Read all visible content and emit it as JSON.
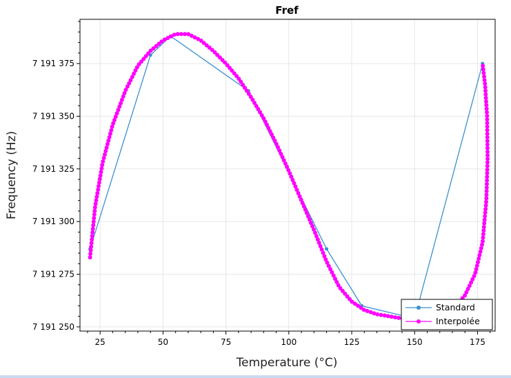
{
  "chart_data": {
    "type": "line",
    "title": "Fref",
    "xlabel": "Temperature (°C)",
    "ylabel": "Frequency (Hz)",
    "xlim": [
      17,
      182
    ],
    "ylim": [
      7191248,
      7191396
    ],
    "x_ticks": [
      25,
      50,
      75,
      100,
      125,
      150,
      175
    ],
    "x_tick_labels": [
      "25",
      "50",
      "75",
      "100",
      "125",
      "150",
      "175"
    ],
    "y_ticks": [
      7191250,
      7191275,
      7191300,
      7191325,
      7191350,
      7191375
    ],
    "y_tick_labels": [
      "7 191 250",
      "7 191 275",
      "7 191 300",
      "7 191 325",
      "7 191 350",
      "7 191 375"
    ],
    "grid": true,
    "legend_position": "bottom-right",
    "series": [
      {
        "name": "Standard",
        "color": "#3a8fd0",
        "points": [
          [
            21,
            7191287
          ],
          [
            45,
            7191379
          ],
          [
            53,
            7191388
          ],
          [
            84,
            7191362
          ],
          [
            115,
            7191287
          ],
          [
            129,
            7191260
          ],
          [
            150,
            7191254
          ],
          [
            177,
            7191375
          ]
        ]
      },
      {
        "name": "Interpolée",
        "color": "#ff00ff",
        "points": [
          [
            21,
            7191283
          ],
          [
            23,
            7191307
          ],
          [
            26,
            7191328
          ],
          [
            30,
            7191346
          ],
          [
            35,
            7191362
          ],
          [
            40,
            7191374
          ],
          [
            45,
            7191381
          ],
          [
            50,
            7191386
          ],
          [
            55,
            7191389
          ],
          [
            60,
            7191389
          ],
          [
            65,
            7191386
          ],
          [
            70,
            7191381
          ],
          [
            75,
            7191375
          ],
          [
            80,
            7191368
          ],
          [
            85,
            7191359
          ],
          [
            90,
            7191349
          ],
          [
            95,
            7191337
          ],
          [
            100,
            7191324
          ],
          [
            105,
            7191310
          ],
          [
            110,
            7191296
          ],
          [
            115,
            7191281
          ],
          [
            120,
            7191269
          ],
          [
            125,
            7191262
          ],
          [
            130,
            7191258
          ],
          [
            135,
            7191256
          ],
          [
            140,
            7191255
          ],
          [
            145,
            7191254
          ],
          [
            150,
            7191254
          ],
          [
            155,
            7191253
          ],
          [
            160,
            7191255
          ],
          [
            165,
            7191258
          ],
          [
            170,
            7191265
          ],
          [
            174,
            7191275
          ],
          [
            177,
            7191290
          ],
          [
            178.5,
            7191310
          ],
          [
            179,
            7191330
          ],
          [
            178.8,
            7191350
          ],
          [
            178,
            7191365
          ],
          [
            177,
            7191375
          ]
        ]
      }
    ]
  }
}
